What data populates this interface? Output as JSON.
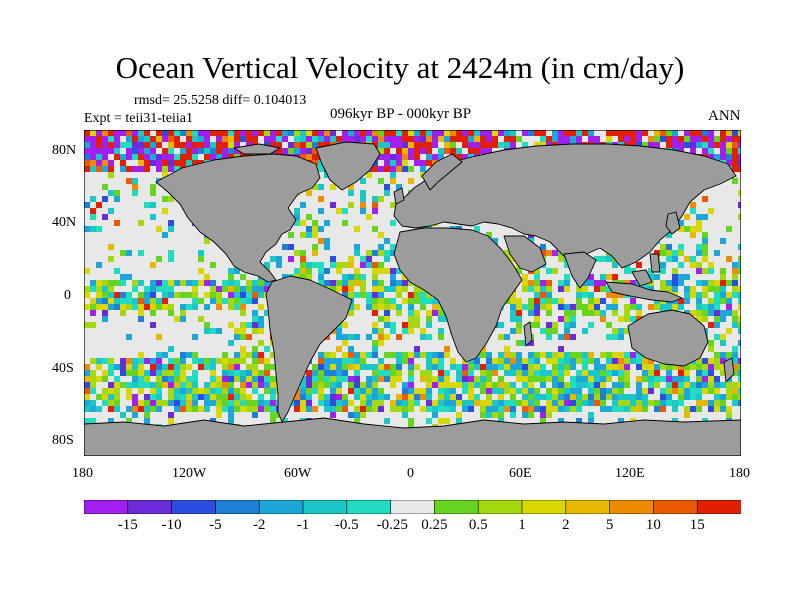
{
  "title": "Ocean Vertical Velocity at 2424m (in cm/day)",
  "rmsd_text": "rmsd= 25.5258  diff= 0.104013",
  "experiment": "Expt = teii31-teiia1",
  "period": "096kyr BP - 000kyr BP",
  "season": "ANN",
  "y_ticks": [
    "80N",
    "40N",
    "0",
    "40S",
    "80S"
  ],
  "x_ticks": [
    "180",
    "120W",
    "60W",
    "0",
    "60E",
    "120E",
    "180"
  ],
  "colorbar": {
    "labels": [
      "-15",
      "-10",
      "-5",
      "-2",
      "-1",
      "-0.5",
      "-0.25",
      "0.25",
      "0.5",
      "1",
      "2",
      "5",
      "10",
      "15"
    ],
    "colors": [
      "#a020f0",
      "#6a2bd9",
      "#2b4de0",
      "#1f7fd6",
      "#1da6d8",
      "#1cc7c7",
      "#22dcc0",
      "#e8e8e8",
      "#66d420",
      "#a6d80f",
      "#d8d800",
      "#e8b800",
      "#ec8a00",
      "#ea5a00",
      "#e02000"
    ]
  },
  "map": {
    "land_color": "#9c9c9c",
    "ocean_background": "#e8e8e8",
    "coastline_color": "#000000"
  }
}
